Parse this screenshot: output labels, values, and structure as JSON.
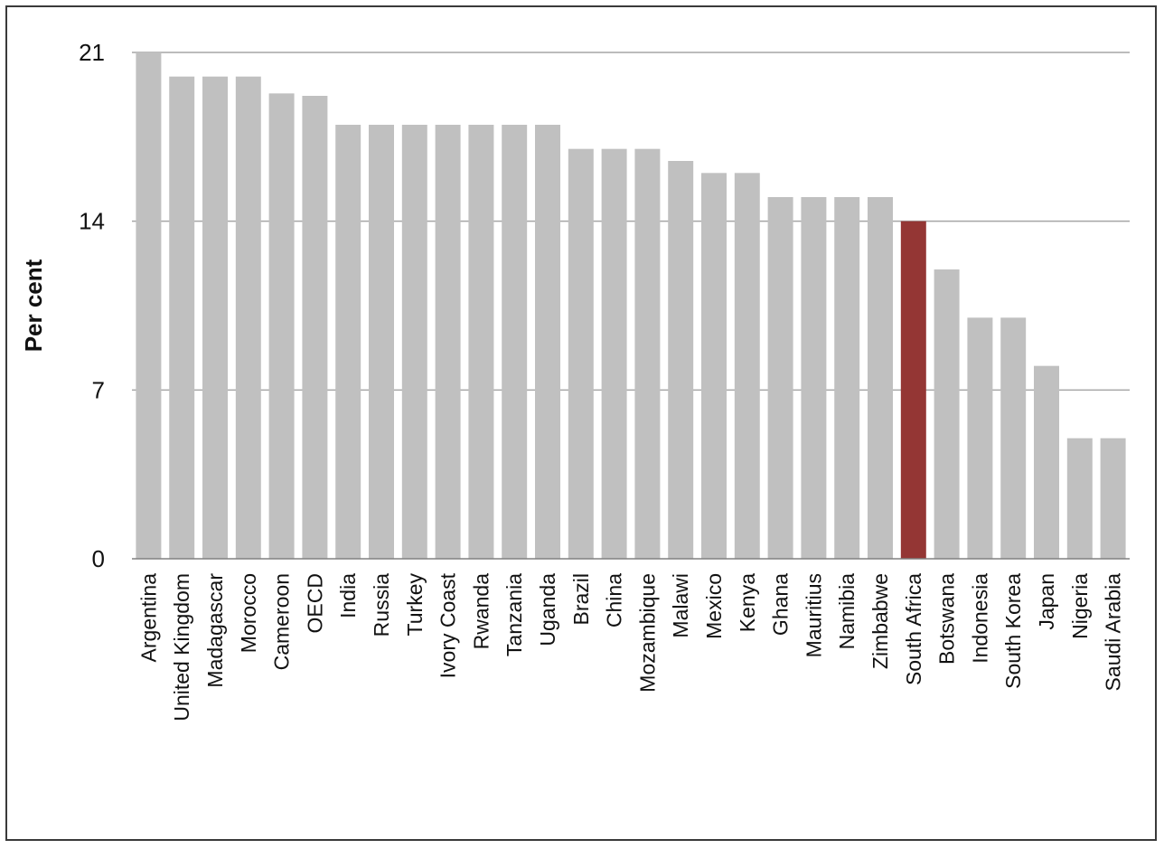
{
  "chart_data": {
    "type": "bar",
    "ylabel": "Per cent",
    "ylim": [
      0,
      21
    ],
    "yticks": [
      0,
      7,
      14,
      21
    ],
    "grid": true,
    "categories": [
      "Argentina",
      "United Kingdom",
      "Madagascar",
      "Morocco",
      "Cameroon",
      "OECD",
      "India",
      "Russia",
      "Turkey",
      "Ivory Coast",
      "Rwanda",
      "Tanzania",
      "Uganda",
      "Brazil",
      "China",
      "Mozambique",
      "Malawi",
      "Mexico",
      "Kenya",
      "Ghana",
      "Mauritius",
      "Namibia",
      "Zimbabwe",
      "South Africa",
      "Botswana",
      "Indonesia",
      "South Korea",
      "Japan",
      "Nigeria",
      "Saudi Arabia"
    ],
    "values": [
      21,
      20,
      20,
      20,
      19.3,
      19.2,
      18,
      18,
      18,
      18,
      18,
      18,
      18,
      17,
      17,
      17,
      16.5,
      16,
      16,
      15,
      15,
      15,
      15,
      14,
      12,
      10,
      10,
      8,
      5,
      5
    ],
    "colors": {
      "default": "#c0c0c0",
      "highlight": "#943634",
      "grid": "#a6a6a6",
      "axis": "#808080"
    },
    "highlight_category": "South Africa"
  }
}
